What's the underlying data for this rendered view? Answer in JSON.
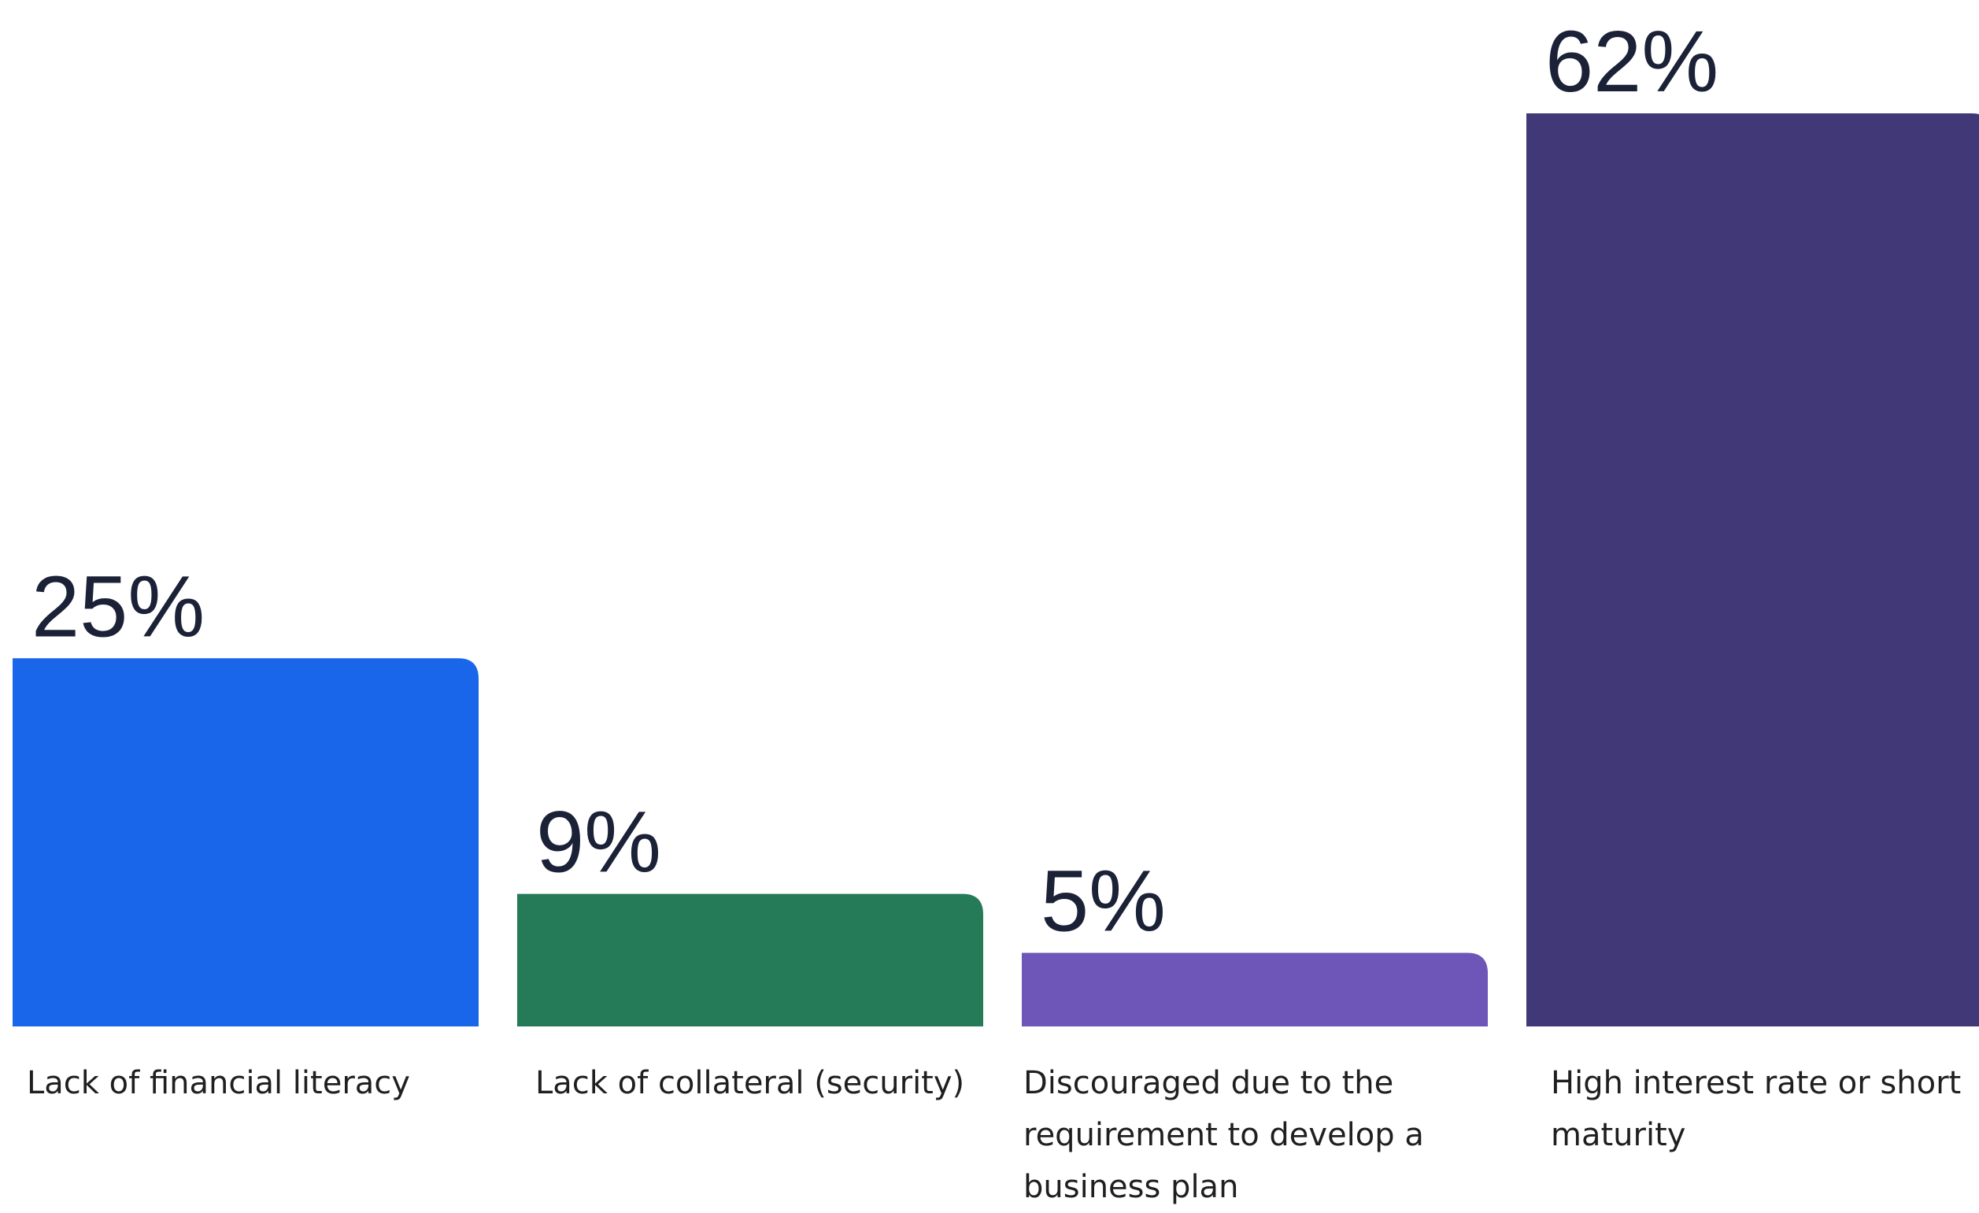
{
  "chart_data": {
    "type": "bar",
    "categories": [
      "Lack of financial literacy",
      "Lack of collateral (security)",
      "Discouraged due to the requirement to develop a business plan",
      "High interest rate or short maturity"
    ],
    "values": [
      25,
      9,
      5,
      62
    ],
    "value_labels": [
      "25%",
      "9%",
      "5%",
      "62%"
    ],
    "colors": [
      "#1a66ea",
      "#257a58",
      "#6e55b8",
      "#413878"
    ],
    "unit": "%",
    "title": "",
    "xlabel": "",
    "ylabel": "",
    "ylim": [
      0,
      62
    ],
    "grid": false,
    "legend": "none"
  }
}
